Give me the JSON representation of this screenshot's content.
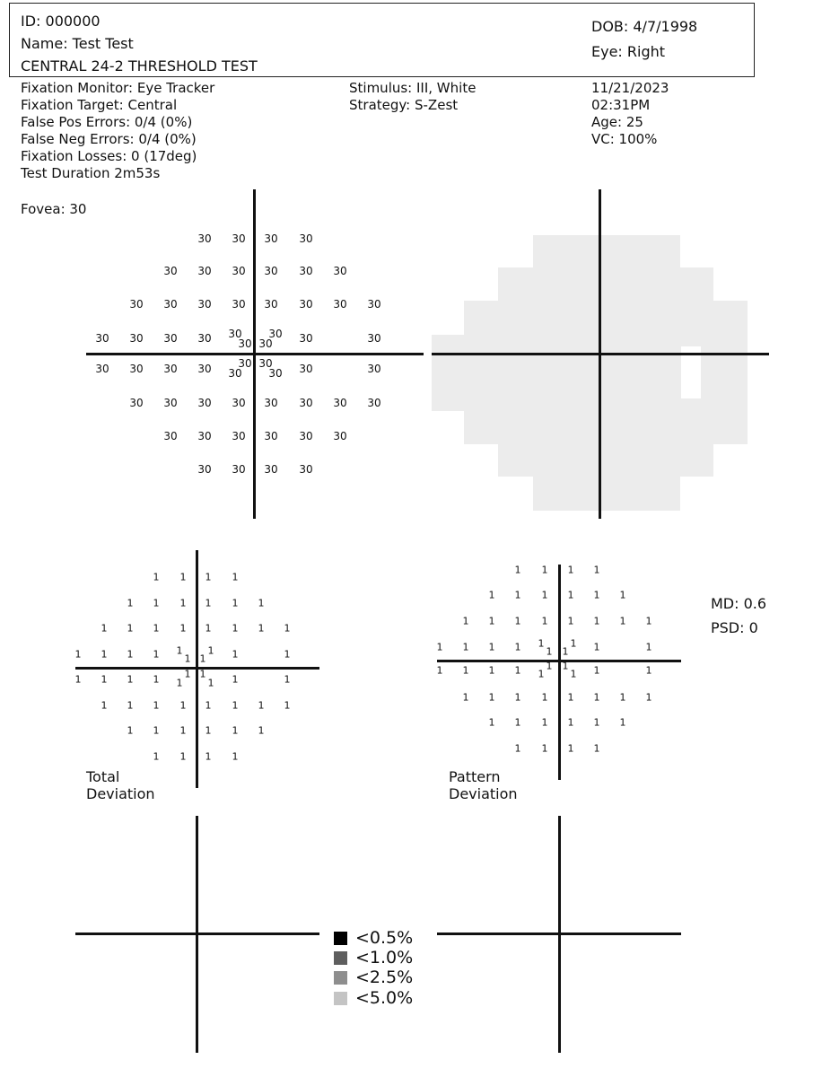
{
  "patient": {
    "id": "ID: 000000",
    "name": "Name: Test Test",
    "test_name": "CENTRAL 24-2 THRESHOLD TEST",
    "dob": "DOB: 4/7/1998",
    "eye": "Eye: Right"
  },
  "info_left": [
    "Fixation Monitor: Eye Tracker",
    "Fixation Target: Central",
    "False Pos Errors: 0/4 (0%)",
    "False Neg Errors: 0/4 (0%)",
    "Fixation Losses: 0 (17deg)",
    "Test Duration 2m53s"
  ],
  "info_middle": [
    "Stimulus: III, White",
    "Strategy: S-Zest"
  ],
  "info_right": [
    "11/21/2023",
    "02:31PM",
    "Age: 25",
    "VC: 100%"
  ],
  "fovea": "Fovea: 30",
  "threshold_values": {
    "row1": [
      "30",
      "30",
      "30",
      "30"
    ],
    "row2": [
      "30",
      "30",
      "30",
      "30",
      "30",
      "30"
    ],
    "row3": [
      "30",
      "30",
      "30",
      "30",
      "30",
      "30",
      "30",
      "30"
    ],
    "row4": [
      "30",
      "30",
      "30",
      "30",
      "30",
      "30",
      "30",
      "30",
      "30"
    ],
    "row5": [
      "30",
      "30",
      "30",
      "30",
      "30",
      "30",
      "30",
      "30",
      "30"
    ],
    "row6": [
      "30",
      "30",
      "30",
      "30",
      "30",
      "30",
      "30",
      "30"
    ],
    "row7": [
      "30",
      "30",
      "30",
      "30",
      "30",
      "30"
    ],
    "row8": [
      "30",
      "30",
      "30",
      "30"
    ]
  },
  "deviation_value": "1",
  "total_deviation_label": "Total\nDeviation",
  "pattern_deviation_label": "Pattern\nDeviation",
  "metrics": {
    "md": "MD: 0.6",
    "psd": "PSD: 0"
  },
  "legend": [
    {
      "label": "<0.5%",
      "color": "#000000"
    },
    {
      "label": "<1.0%",
      "color": "#5e5e5e"
    },
    {
      "label": "<2.5%",
      "color": "#8e8e8e"
    },
    {
      "label": "<5.0%",
      "color": "#c4c4c4"
    }
  ],
  "grayscale_color": "#ececec"
}
